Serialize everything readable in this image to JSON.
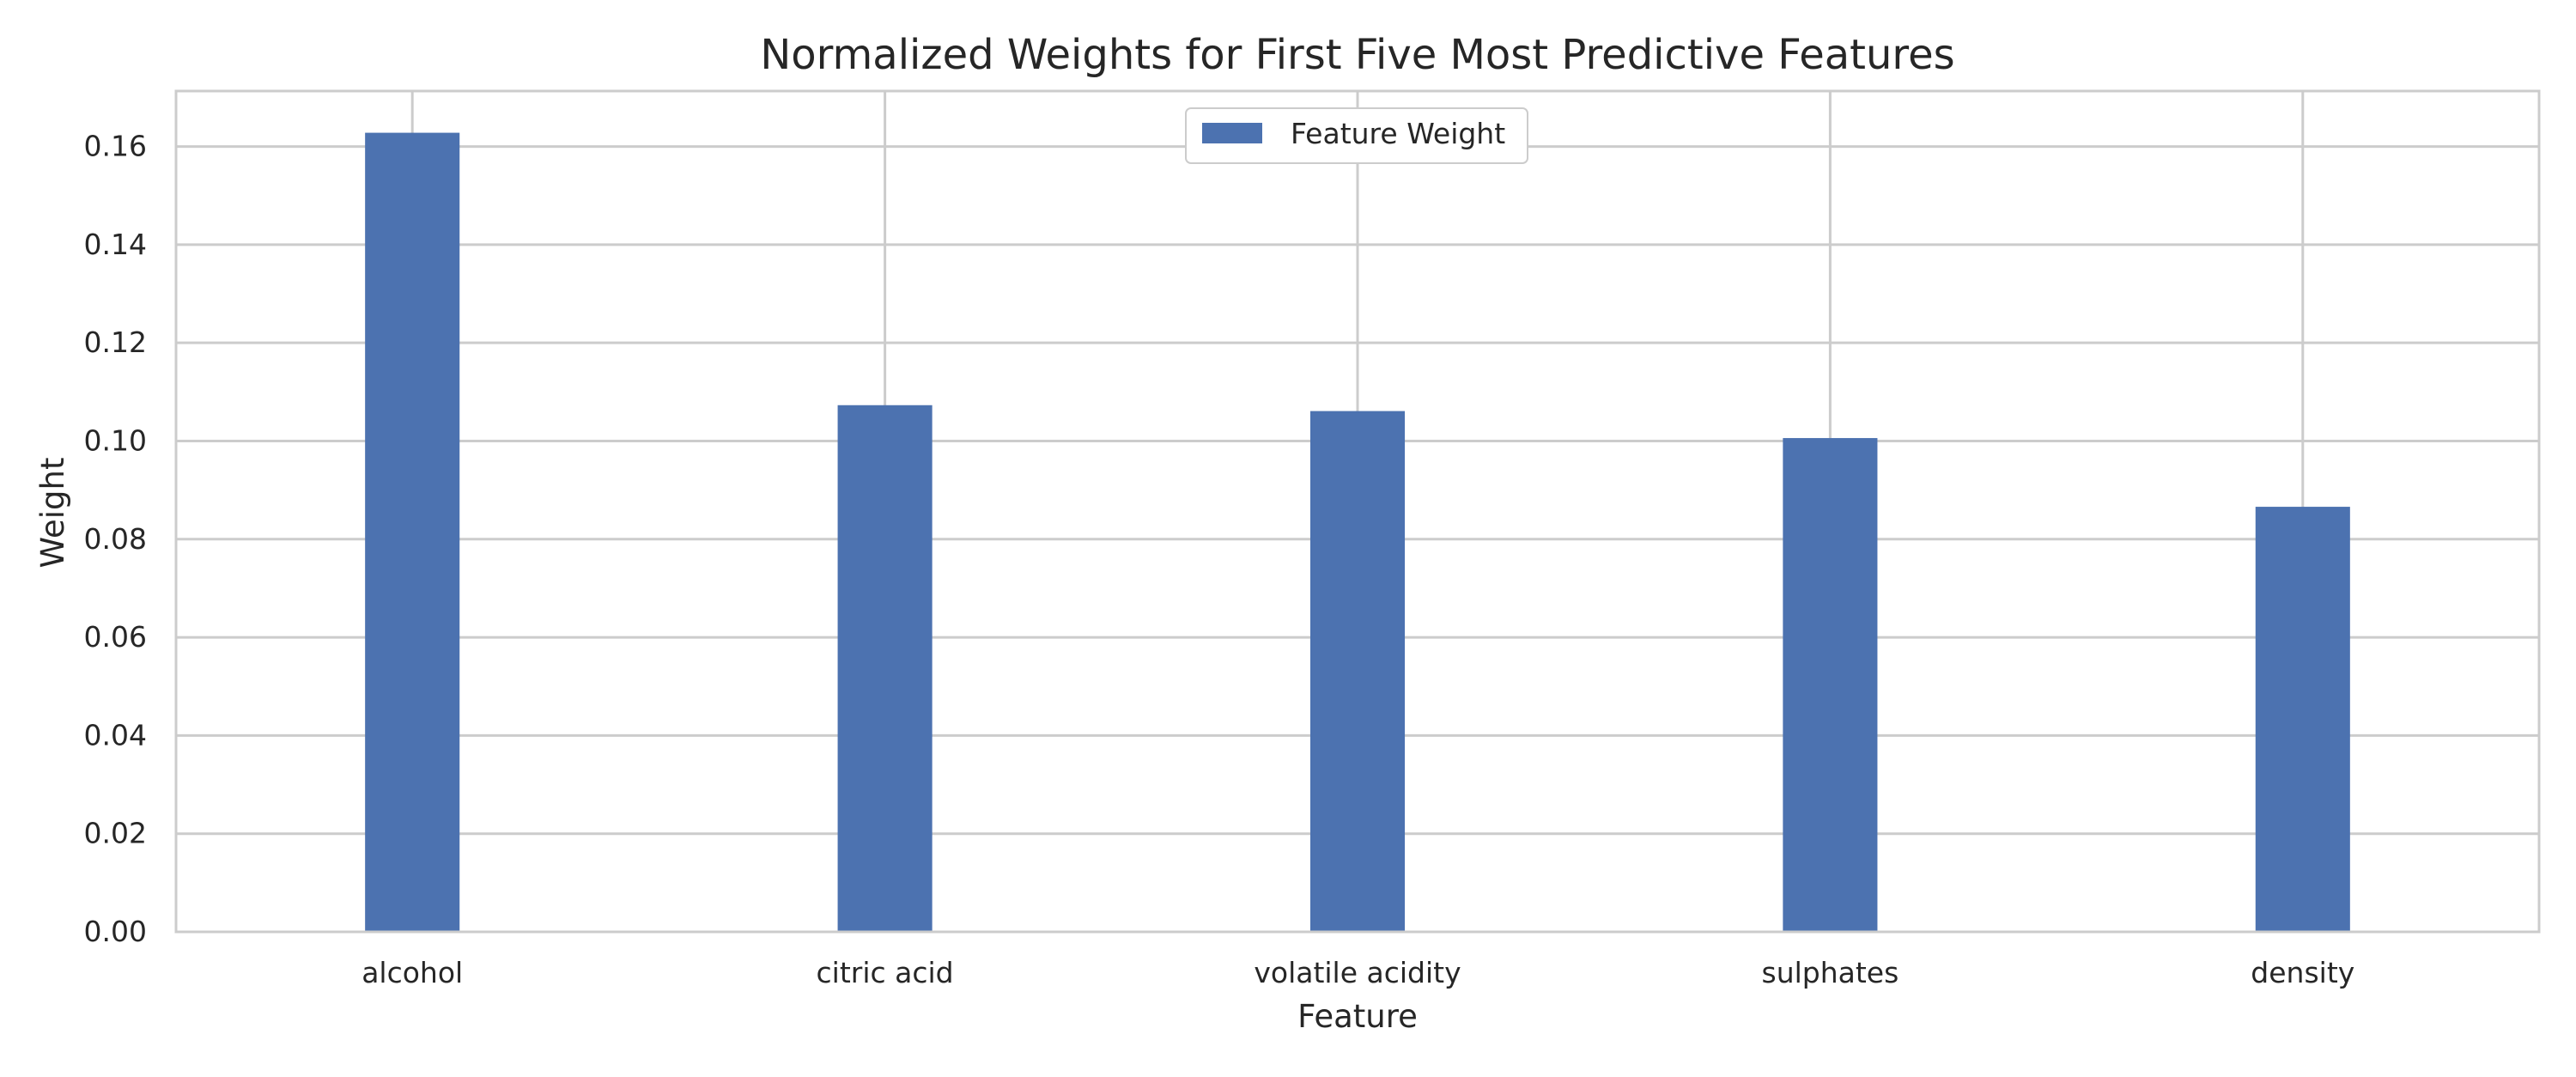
{
  "chart_data": {
    "type": "bar",
    "title": "Normalized Weights for First Five Most Predictive Features",
    "xlabel": "Feature",
    "ylabel": "Weight",
    "categories": [
      "alcohol",
      "citric acid",
      "volatile acidity",
      "sulphates",
      "density"
    ],
    "series": [
      {
        "name": "Feature Weight",
        "values": [
          0.1628,
          0.1073,
          0.1061,
          0.1006,
          0.0866
        ]
      }
    ],
    "ylim": [
      0,
      0.1713
    ],
    "yticks": [
      0.0,
      0.02,
      0.04,
      0.06,
      0.08,
      0.1,
      0.12,
      0.14,
      0.16
    ],
    "ytick_labels": [
      "0.00",
      "0.02",
      "0.04",
      "0.06",
      "0.08",
      "0.10",
      "0.12",
      "0.14",
      "0.16"
    ],
    "grid": true,
    "legend_position": "top-center",
    "colors": {
      "bar": "#4c72b0",
      "grid": "#cccccc",
      "frame": "#cccccc",
      "text": "#262626"
    }
  }
}
